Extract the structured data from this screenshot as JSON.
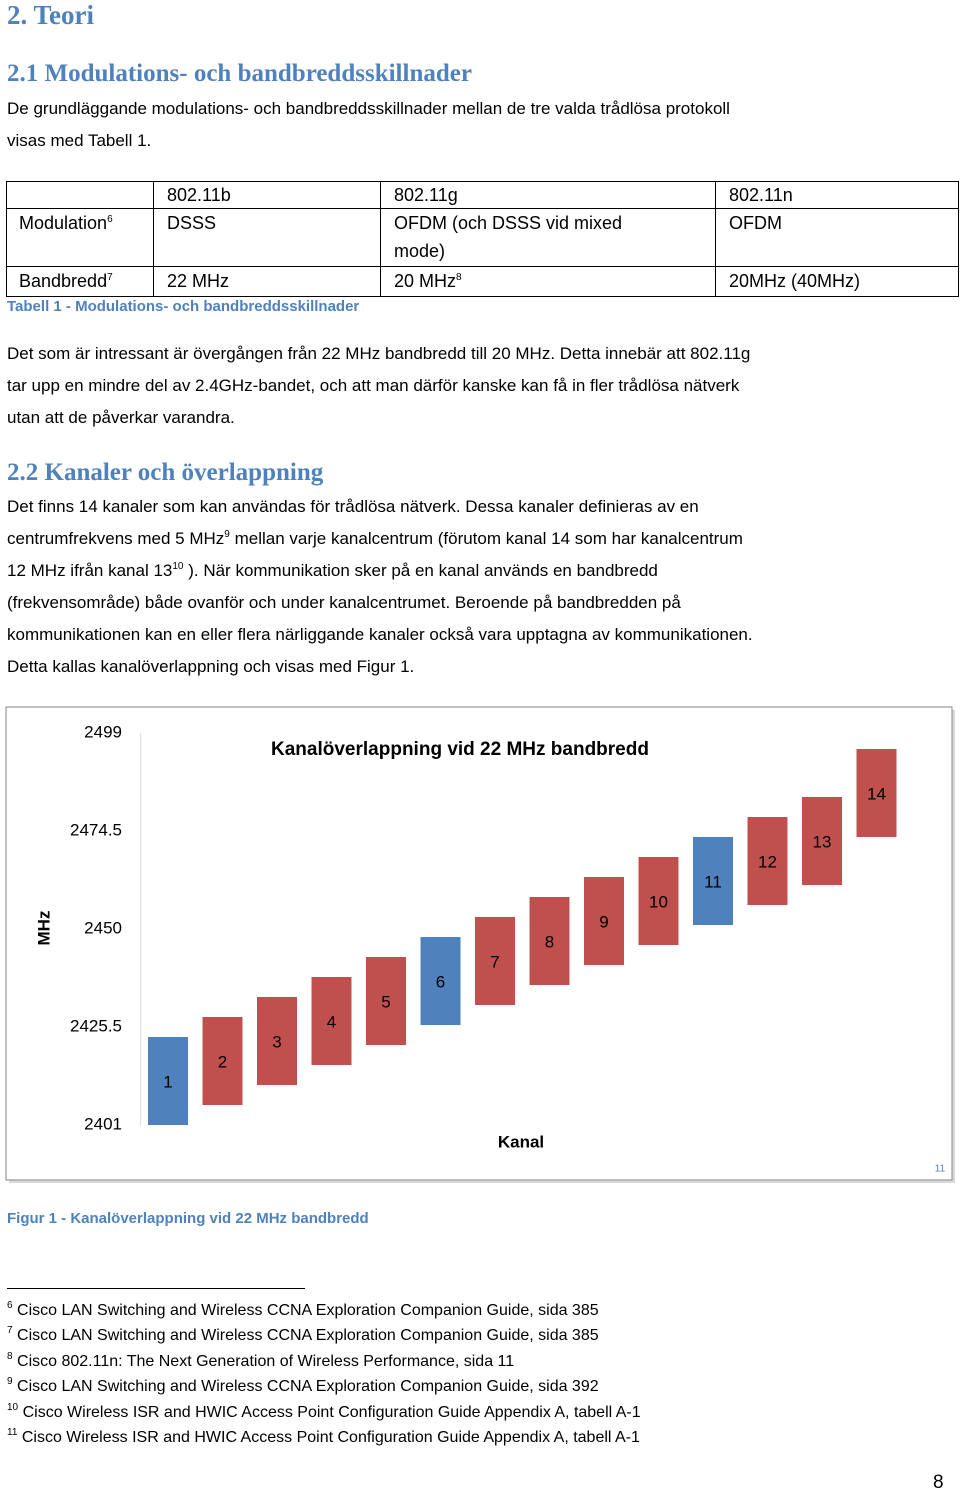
{
  "heading": "2. Teori",
  "section1": {
    "title": "2.1 Modulations- och bandbreddsskillnader",
    "intro": [
      [
        "De grundläggande modulations- och bandbreddsskillnader mellan de tre valda trådlösa protokoll"
      ],
      [
        "visas med Tabell 1."
      ]
    ]
  },
  "table": {
    "columns": [
      "802.11b",
      "802.11g",
      "802.11n"
    ],
    "rows": [
      {
        "label": [
          "Modulation",
          {
            "sup": "6"
          }
        ],
        "cells": [
          [
            "DSSS"
          ],
          [
            "OFDM (och DSSS vid mixed mode)"
          ],
          [
            "OFDM"
          ]
        ]
      },
      {
        "label": [
          "Bandbredd",
          {
            "sup": "7"
          }
        ],
        "cells": [
          [
            "22 MHz"
          ],
          [
            "20 MHz",
            {
              "sup": "8"
            }
          ],
          [
            "20MHz (40MHz)"
          ]
        ]
      }
    ],
    "caption": "Tabell 1 - Modulations- och bandbreddsskillnader"
  },
  "paragraph1": [
    [
      "Det som är intressant är övergången från 22 MHz bandbredd till 20 MHz. Detta innebär att 802.11g"
    ],
    [
      "tar upp en mindre del av 2.4GHz-bandet, och att man därför kanske kan få in fler trådlösa nätverk"
    ],
    [
      "utan att de påverkar varandra."
    ]
  ],
  "section2": {
    "title": "2.2 Kanaler och överlappning",
    "paragraph": [
      [
        "Det finns 14 kanaler som kan användas för trådlösa nätverk. Dessa kanaler definieras av en"
      ],
      [
        "centrumfrekvens med 5 MHz",
        {
          "sup": "9"
        },
        " mellan varje kanalcentrum (förutom kanal 14 som har kanalcentrum"
      ],
      [
        "12 MHz ifrån kanal 13",
        {
          "sup": "10"
        },
        " ). När kommunikation sker på en kanal används en bandbredd"
      ],
      [
        "(frekvensområde) både ovanför och under kanalcentrumet. Beroende på bandbredden på"
      ],
      [
        "kommunikationen kan en eller flera närliggande kanaler också vara upptagna av kommunikationen."
      ],
      [
        "Detta kallas kanalöverlappning och visas med Figur 1."
      ]
    ]
  },
  "chart_data": {
    "type": "range_bar",
    "title": "Kanalöverlappning vid 22 MHz bandbredd",
    "x_label": "Kanal",
    "y_label": "MHz",
    "categories": [
      "1",
      "2",
      "3",
      "4",
      "5",
      "6",
      "7",
      "8",
      "9",
      "10",
      "11",
      "12",
      "13",
      "14"
    ],
    "low": [
      2401,
      2406,
      2411,
      2416,
      2421,
      2426,
      2431,
      2436,
      2441,
      2446,
      2451,
      2456,
      2461,
      2473
    ],
    "high": [
      2423,
      2428,
      2433,
      2438,
      2443,
      2448,
      2453,
      2458,
      2463,
      2468,
      2473,
      2478,
      2483,
      2495
    ],
    "colors": [
      "#4f81bd",
      "#c0504d",
      "#c0504d",
      "#c0504d",
      "#c0504d",
      "#4f81bd",
      "#c0504d",
      "#c0504d",
      "#c0504d",
      "#c0504d",
      "#4f81bd",
      "#c0504d",
      "#c0504d",
      "#c0504d"
    ],
    "ylim": [
      2401,
      2499
    ],
    "yticks": [
      2401,
      2425.5,
      2450,
      2474.5,
      2499
    ],
    "grid": false
  },
  "figure_note": "11",
  "figure_caption": "Figur 1 - Kanalöverlappning vid 22 MHz bandbredd",
  "footnotes": [
    {
      "number": "6",
      "text": "Cisco LAN Switching and Wireless CCNA Exploration Companion Guide, sida 385"
    },
    {
      "number": "7",
      "text": "Cisco LAN Switching and Wireless CCNA Exploration Companion Guide, sida 385"
    },
    {
      "number": "8",
      "text": "Cisco 802.11n: The Next Generation of Wireless Performance, sida 11"
    },
    {
      "number": "9",
      "text": "Cisco LAN Switching and Wireless CCNA Exploration Companion Guide, sida 392"
    },
    {
      "number": "10",
      "text": "Cisco Wireless ISR and HWIC Access Point Configuration Guide Appendix A, tabell A-1"
    },
    {
      "number": "11",
      "text": "Cisco Wireless ISR and HWIC Access Point Configuration Guide Appendix A, tabell A-1"
    }
  ],
  "page_number": "8"
}
